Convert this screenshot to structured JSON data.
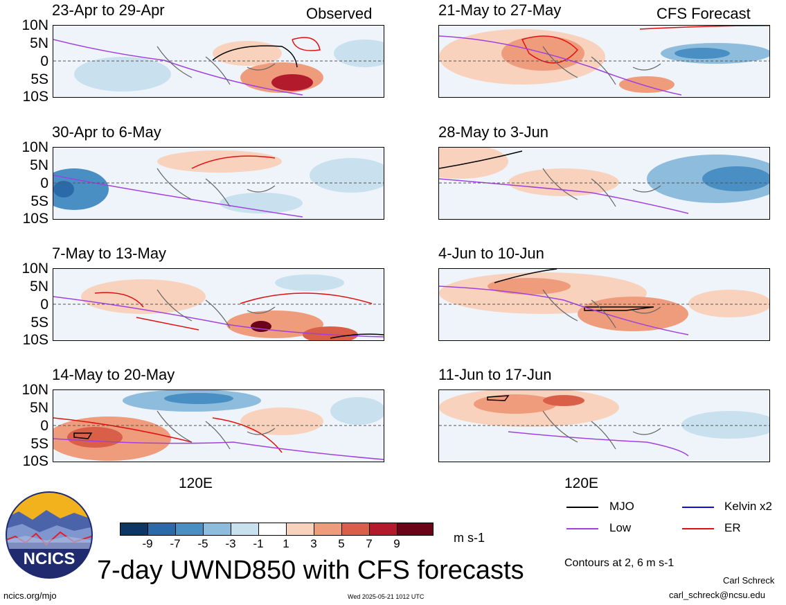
{
  "headers": {
    "left": "Observed",
    "right": "CFS Forecast"
  },
  "panels_left": [
    {
      "label": "23-Apr to 29-Apr"
    },
    {
      "label": "30-Apr to 6-May"
    },
    {
      "label": "7-May to 13-May"
    },
    {
      "label": "14-May to 20-May"
    }
  ],
  "panels_right": [
    {
      "label": "21-May to 27-May"
    },
    {
      "label": "28-May to 3-Jun"
    },
    {
      "label": "4-Jun to 10-Jun"
    },
    {
      "label": "11-Jun to 17-Jun"
    }
  ],
  "lat_labels": [
    "10N",
    "5N",
    "0",
    "5S",
    "10S"
  ],
  "lon_label": "120E",
  "colorbar": {
    "labels": [
      "-9",
      "-7",
      "-5",
      "-3",
      "-1",
      "1",
      "3",
      "5",
      "7",
      "9"
    ],
    "colors": [
      "#0d3566",
      "#2b6aa8",
      "#4a8fc4",
      "#8dbcdc",
      "#c9e0ef",
      "#ffffff",
      "#f9d2bd",
      "#ef9c7d",
      "#d95f48",
      "#b31b2d",
      "#6b0319"
    ],
    "units": "m s-1"
  },
  "legend": {
    "items": [
      {
        "name": "MJO",
        "color": "#000000"
      },
      {
        "name": "Kelvin x2",
        "color": "#1010cc"
      },
      {
        "name": "Low",
        "color": "#a040e0"
      },
      {
        "name": "ER",
        "color": "#e01010"
      }
    ],
    "note": "Contours at 2, 6 m s-1"
  },
  "logo_text": "NCICS",
  "title": "7-day UWND850 with CFS forecasts",
  "footer": {
    "left": "ncics.org/mjo",
    "center": "Wed 2025-05-21 1012 UTC",
    "author": "Carl Schreck",
    "email": "carl_schreck@ncsu.edu"
  }
}
